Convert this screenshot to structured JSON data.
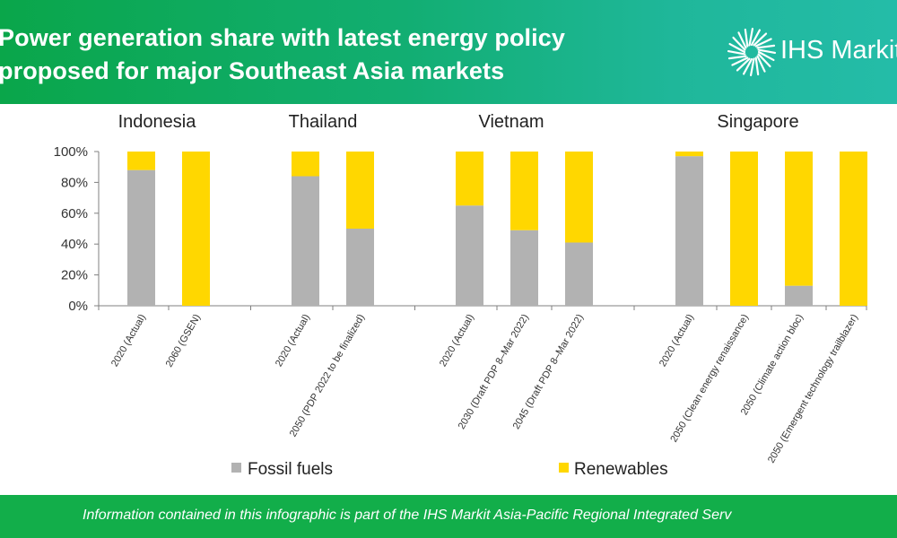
{
  "header": {
    "title_line1": "Power generation share with latest energy policy",
    "title_line2": "proposed for major Southeast Asia markets",
    "logo_text": "IHS Markit",
    "logo_icon": "starburst-logo-icon",
    "background_colors": [
      "#0aa64a",
      "#24bca8"
    ]
  },
  "footer": {
    "text": "Information contained in this infographic is part of the IHS Markit Asia-Pacific Regional Integrated Serv",
    "background_color": "#12ae4a"
  },
  "chart_data": {
    "type": "bar",
    "stacked": true,
    "ylim": [
      0,
      100
    ],
    "yticks": [
      "0%",
      "20%",
      "40%",
      "60%",
      "80%",
      "100%"
    ],
    "groups": [
      {
        "name": "Indonesia",
        "categories": [
          "2020 (Actual)",
          "2060 (GSEN)"
        ]
      },
      {
        "name": "Thailand",
        "categories": [
          "2020 (Actual)",
          "2050 (PDP 2022 to be finalized)"
        ]
      },
      {
        "name": "Vietnam",
        "categories": [
          "2020 (Actual)",
          "2030 (Draft PDP 8–Mar 2022)",
          "2045 (Draft PDP 8–Mar 2022)"
        ]
      },
      {
        "name": "Singapore",
        "categories": [
          "2020 (Actual)",
          "2050 (Clean energy renaissance)",
          "2050 (Climate action bloc)",
          "2050 (Emergent technology trailblazer)"
        ]
      }
    ],
    "series": [
      {
        "name": "Fossil fuels",
        "color": "#b2b2b2",
        "values": [
          88,
          0,
          84,
          50,
          65,
          49,
          41,
          97,
          0,
          13,
          0
        ]
      },
      {
        "name": "Renewables",
        "color": "#ffd700",
        "values": [
          12,
          100,
          16,
          50,
          35,
          51,
          59,
          3,
          100,
          87,
          100
        ]
      }
    ],
    "legend_position": "bottom",
    "grid": false
  }
}
